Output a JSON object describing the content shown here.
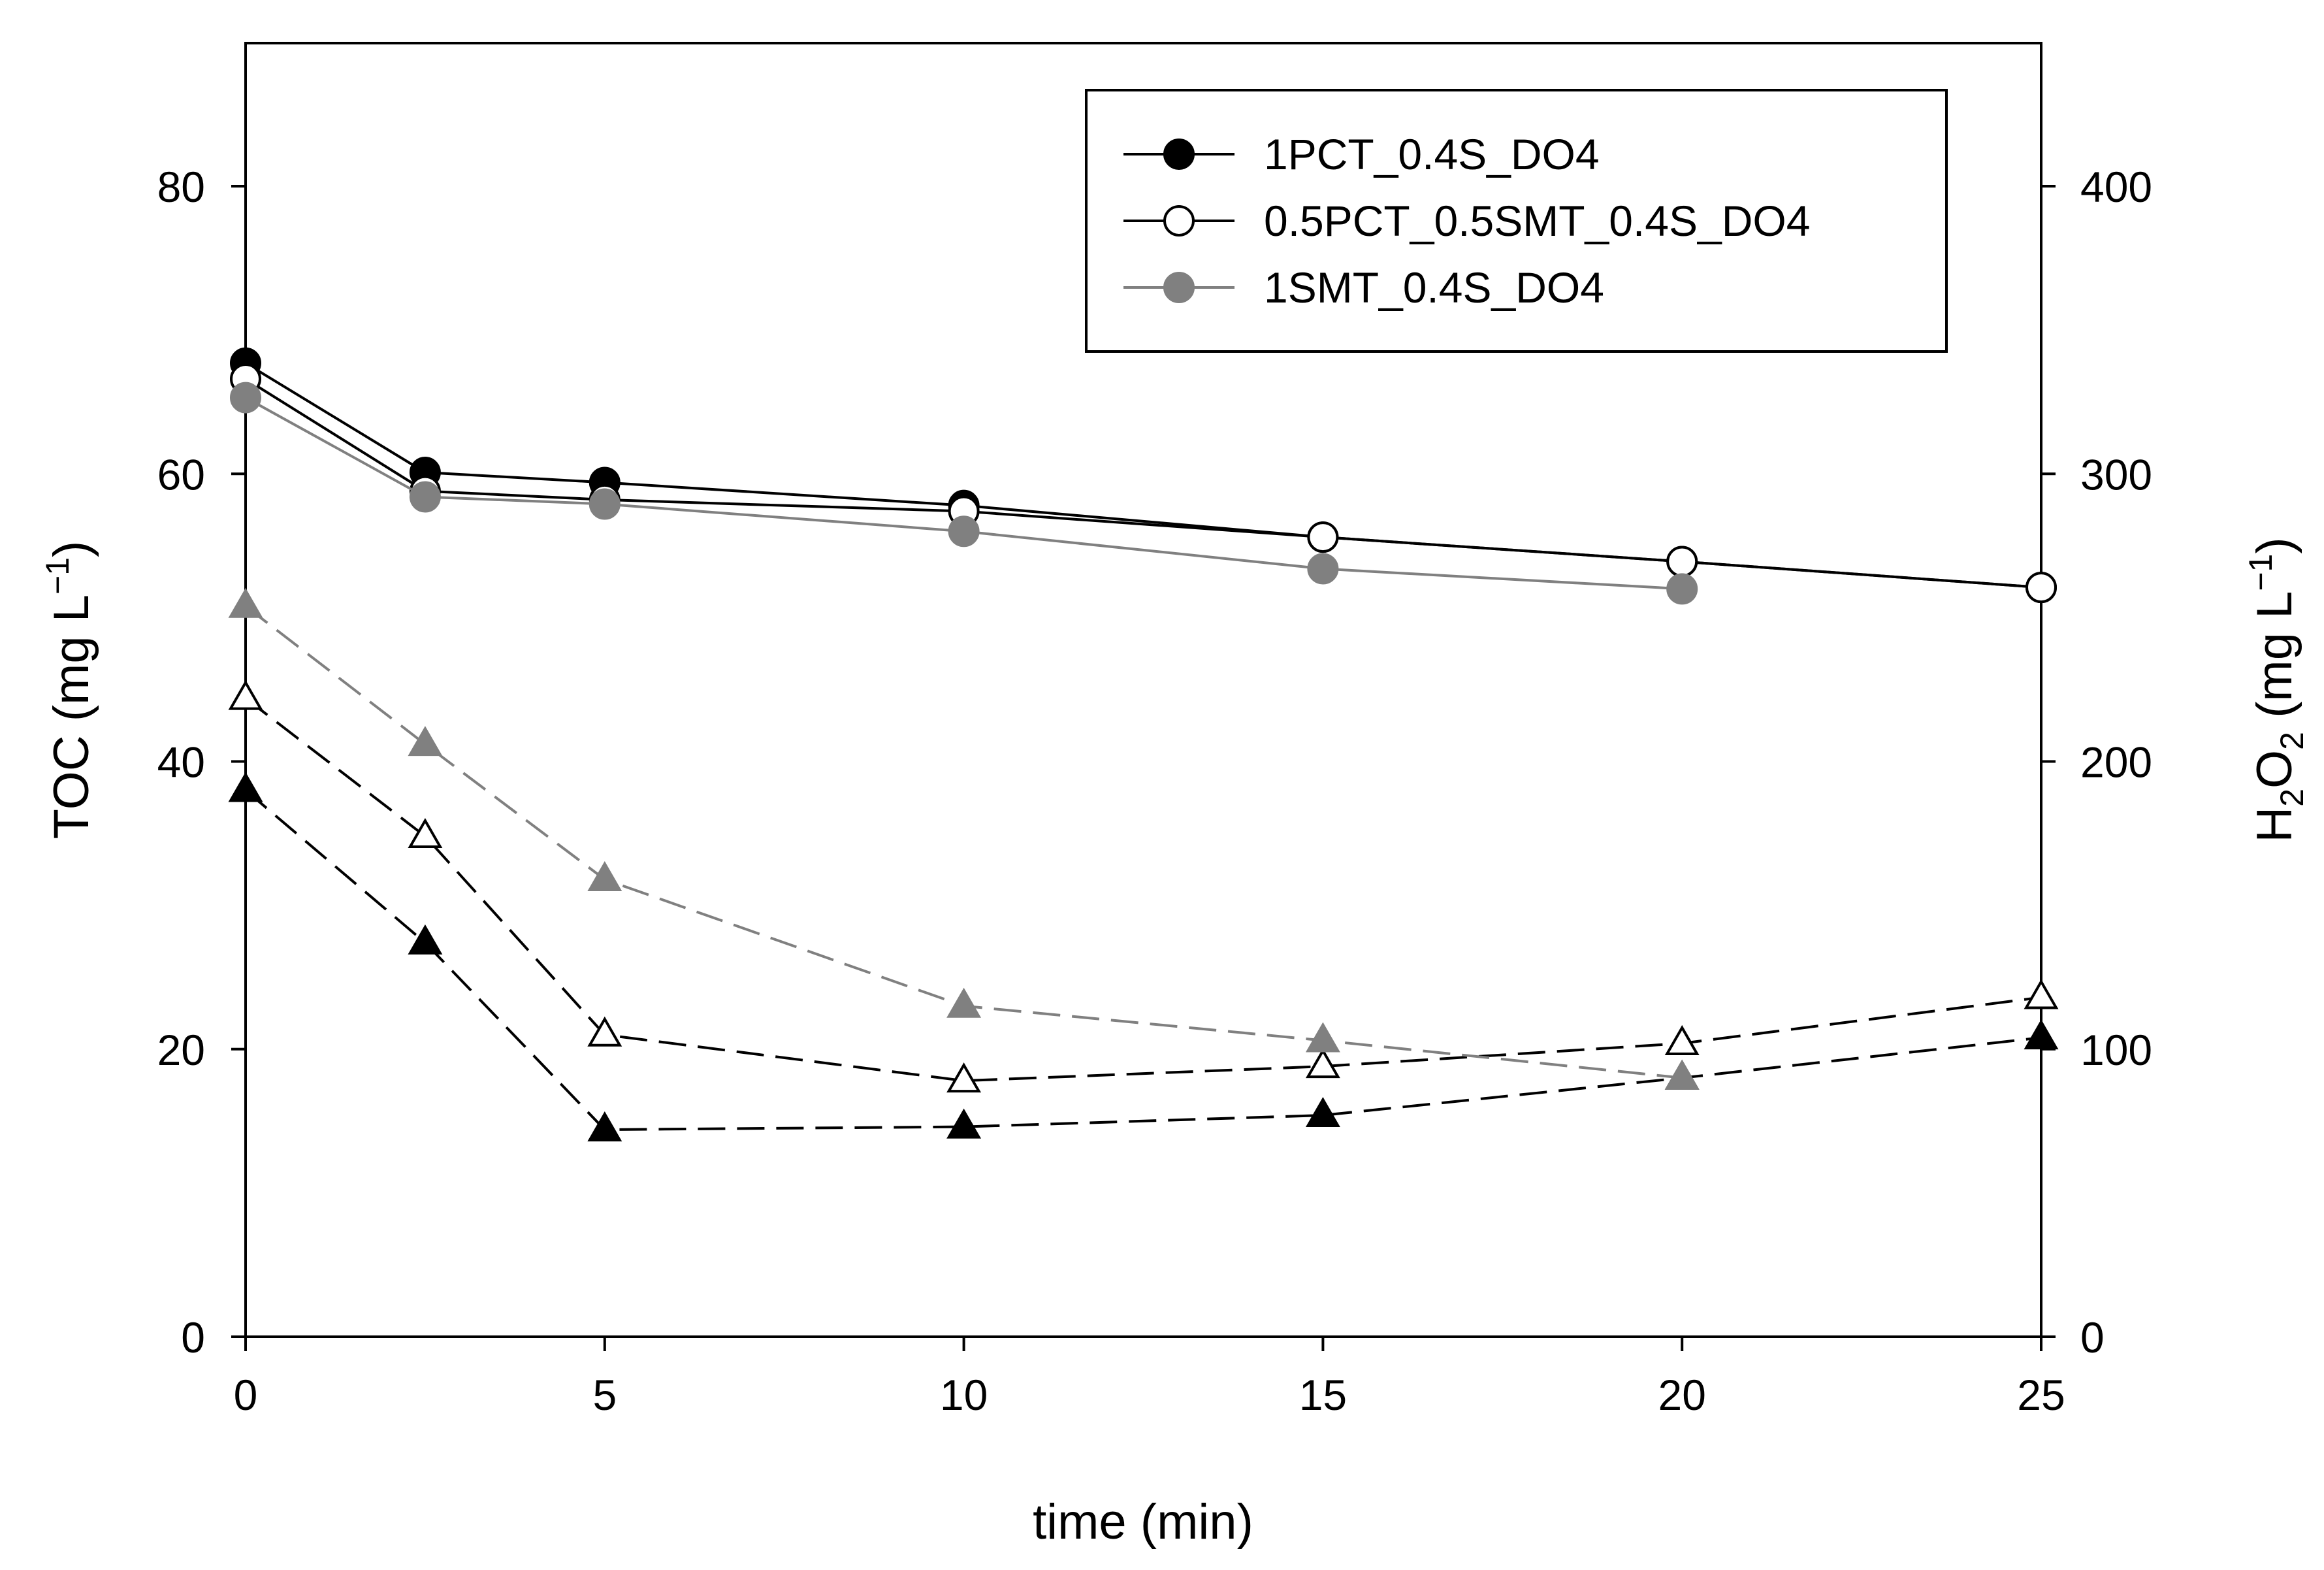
{
  "chart_data": {
    "type": "line",
    "title": "",
    "xlabel": "time (min)",
    "ylabel_left": {
      "main": "TOC (mg L",
      "sup": "−1",
      "close": ")"
    },
    "ylabel_right": {
      "h": "H",
      "sub1": "2",
      "o": "O",
      "sub2": "2",
      "rest": " (mg L",
      "sup": "−1",
      "close": ")"
    },
    "xlim": [
      0,
      25
    ],
    "ylim_left": [
      0,
      90
    ],
    "ylim_right": [
      0,
      450
    ],
    "x_ticks": [
      0,
      5,
      10,
      15,
      20,
      25
    ],
    "y_left_ticks": [
      0,
      20,
      40,
      60,
      80
    ],
    "y_right_ticks": [
      0,
      100,
      200,
      300,
      400
    ],
    "grid": false,
    "legend_position": "top-right",
    "colors": {
      "black": "#000000",
      "gray": "#808080"
    },
    "series": [
      {
        "name": "1PCT_0.4S_DO4",
        "axis": "left",
        "quantity": "TOC",
        "marker": "circle",
        "fill": "#000000",
        "stroke": "#000000",
        "line": "#000000",
        "dash": "solid",
        "legend": true,
        "x": [
          0,
          2.5,
          5,
          10,
          15,
          20,
          25
        ],
        "y": [
          67.7,
          60.1,
          59.4,
          57.8,
          55.6,
          53.9,
          52.1
        ]
      },
      {
        "name": "0.5PCT_0.5SMT_0.4S_DO4",
        "axis": "left",
        "quantity": "TOC",
        "marker": "circle",
        "fill": "#ffffff",
        "stroke": "#000000",
        "line": "#000000",
        "dash": "solid",
        "legend": true,
        "x": [
          0,
          2.5,
          5,
          10,
          15,
          20,
          25
        ],
        "y": [
          66.6,
          58.8,
          58.2,
          57.4,
          55.6,
          53.9,
          52.1
        ]
      },
      {
        "name": "1SMT_0.4S_DO4",
        "axis": "left",
        "quantity": "TOC",
        "marker": "circle",
        "fill": "#808080",
        "stroke": "#808080",
        "line": "#808080",
        "dash": "solid",
        "legend": true,
        "x": [
          0,
          2.5,
          5,
          10,
          15,
          20
        ],
        "y": [
          65.3,
          58.4,
          57.9,
          56.0,
          53.4,
          52.0
        ]
      },
      {
        "name": "1PCT_0.4S_DO4 H2O2",
        "axis": "right",
        "quantity": "H2O2",
        "marker": "triangle",
        "fill": "#000000",
        "stroke": "#000000",
        "line": "#000000",
        "dash": "dashed",
        "legend": false,
        "x": [
          0,
          2.5,
          5,
          10,
          15,
          20,
          25
        ],
        "y": [
          190,
          137,
          72,
          73,
          77,
          90,
          104
        ]
      },
      {
        "name": "0.5PCT_0.5SMT_0.4S_DO4 H2O2",
        "axis": "right",
        "quantity": "H2O2",
        "marker": "triangle",
        "fill": "#ffffff",
        "stroke": "#000000",
        "line": "#000000",
        "dash": "dashed",
        "legend": false,
        "x": [
          0,
          2.5,
          5,
          10,
          15,
          20,
          25
        ],
        "y": [
          222,
          174,
          105,
          89,
          94,
          102,
          118
        ]
      },
      {
        "name": "1SMT_0.4S_DO4 H2O2",
        "axis": "right",
        "quantity": "H2O2",
        "marker": "triangle",
        "fill": "#808080",
        "stroke": "#808080",
        "line": "#808080",
        "dash": "dashed",
        "legend": false,
        "x": [
          0,
          2.5,
          5,
          10,
          15,
          20
        ],
        "y": [
          254,
          206,
          159,
          115,
          103,
          90
        ]
      }
    ]
  }
}
